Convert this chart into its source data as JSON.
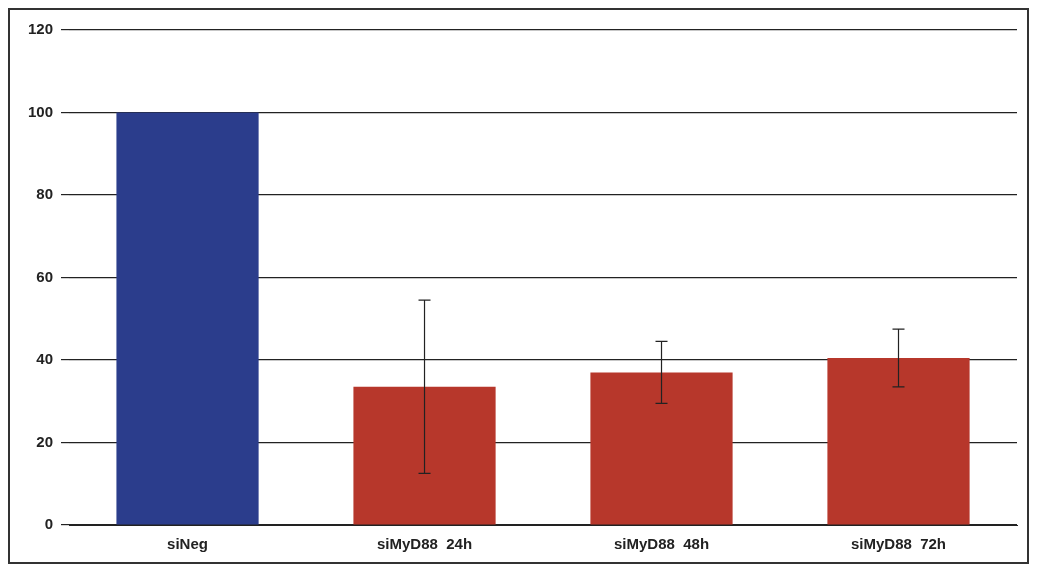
{
  "chart_data": {
    "type": "bar",
    "categories": [
      "siNeg",
      "siMyD88  24h",
      "siMyD88  48h",
      "siMyD88  72h"
    ],
    "values": [
      100,
      33.5,
      37,
      40.5
    ],
    "colors": [
      "#2b3d8c",
      "#b7372b",
      "#b7372b",
      "#b7372b"
    ],
    "errors": [
      null,
      21,
      7.5,
      7
    ],
    "ylim": [
      0,
      120
    ],
    "yticks": [
      0,
      20,
      40,
      60,
      80,
      100,
      120
    ],
    "grid": "y",
    "legend": false
  }
}
